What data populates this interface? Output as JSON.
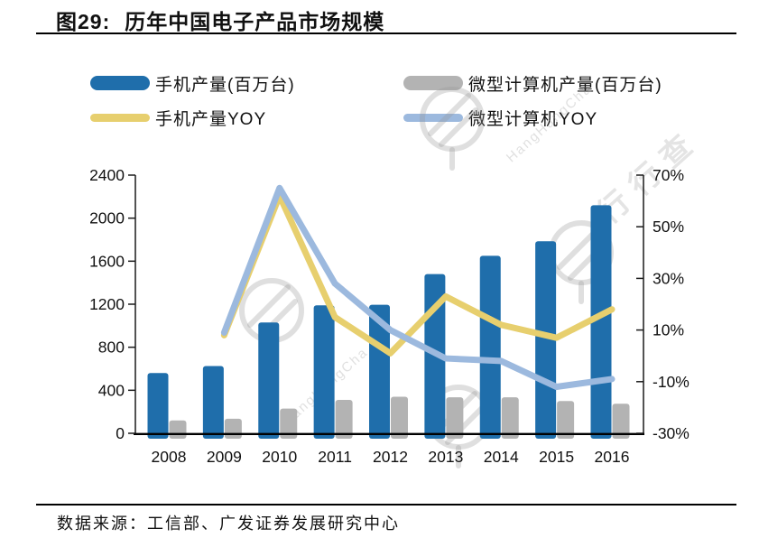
{
  "title": {
    "label": "图29:",
    "text": "历年中国电子产品市场规模"
  },
  "legend": [
    {
      "label": "手机产量(百万台)",
      "type": "bar",
      "color": "#1F6EAB"
    },
    {
      "label": "微型计算机产量(百万台)",
      "type": "bar",
      "color": "#B3B3B3"
    },
    {
      "label": "手机产量YOY",
      "type": "line",
      "color": "#E7CF6E"
    },
    {
      "label": "微型计算机YOY",
      "type": "line",
      "color": "#9CB9DE"
    }
  ],
  "chart_data": {
    "type": "bar+line",
    "title": "历年中国电子产品市场规模",
    "categories": [
      "2008",
      "2009",
      "2010",
      "2011",
      "2012",
      "2013",
      "2014",
      "2015",
      "2016"
    ],
    "series": [
      {
        "name": "手机产量(百万台)",
        "type": "bar",
        "axis": "left",
        "color": "#1F6EAB",
        "values": [
          560,
          625,
          1030,
          1190,
          1195,
          1480,
          1650,
          1785,
          2120
        ]
      },
      {
        "name": "微型计算机产量(百万台)",
        "type": "bar",
        "axis": "left",
        "color": "#B3B3B3",
        "values": [
          120,
          135,
          230,
          310,
          340,
          335,
          335,
          300,
          275
        ]
      },
      {
        "name": "手机产量YOY",
        "type": "line",
        "axis": "right",
        "color": "#E7CF6E",
        "values": [
          null,
          8,
          62,
          15,
          1,
          23,
          12,
          7,
          18
        ]
      },
      {
        "name": "微型计算机YOY",
        "type": "line",
        "axis": "right",
        "color": "#9CB9DE",
        "values": [
          null,
          9,
          65,
          28,
          10,
          -1,
          -2,
          -12,
          -9
        ]
      }
    ],
    "y_left": {
      "min": 0,
      "max": 2400,
      "ticks": [
        0,
        400,
        800,
        1200,
        1600,
        2000,
        2400
      ]
    },
    "y_right": {
      "min": -30,
      "max": 70,
      "ticks": [
        -30,
        -10,
        10,
        30,
        50,
        70
      ],
      "suffix": "%"
    },
    "grid": false,
    "legend_position": "top"
  },
  "footer": {
    "source": "数据来源：工信部、广发证券发展研究中心"
  },
  "watermark": {
    "text": "行行查",
    "latin": "HangHangCha"
  }
}
